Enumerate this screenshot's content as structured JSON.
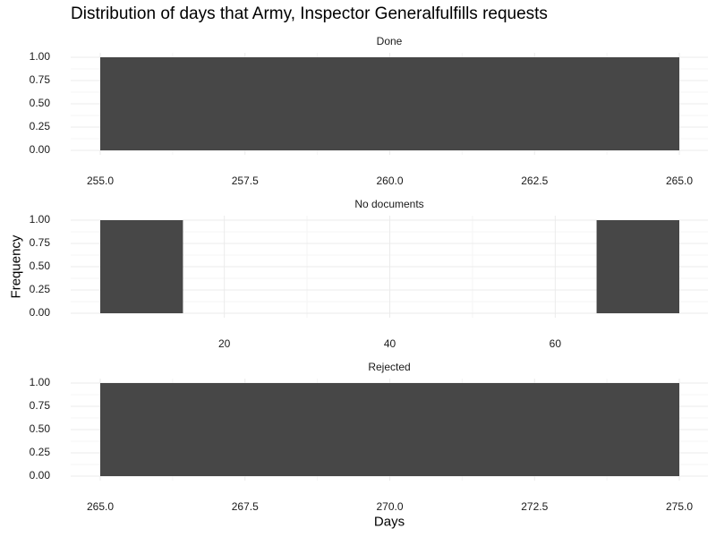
{
  "title": "Distribution of days that Army, Inspector Generalfulfills requests",
  "chart_data": {
    "type": "bar",
    "title": "Distribution of days that Army, Inspector Generalfulfills requests",
    "xlabel": "Days",
    "ylabel": "Frequency",
    "grid": true,
    "facets": [
      {
        "label": "Done",
        "bars": [
          {
            "x_start": 255,
            "x_end": 265,
            "count": 1
          }
        ],
        "xlim": [
          255,
          265
        ],
        "xticks": [
          255.0,
          257.5,
          260.0,
          262.5,
          265.0
        ],
        "xtick_labels": [
          "255.0",
          "257.5",
          "260.0",
          "262.5",
          "265.0"
        ],
        "ylim": [
          0,
          1
        ],
        "yticks": [
          0,
          0.25,
          0.5,
          0.75,
          1
        ],
        "ytick_labels": [
          "0.00",
          "0.25",
          "0.50",
          "0.75",
          "1.00"
        ]
      },
      {
        "label": "No documents",
        "bars": [
          {
            "x_start": 5,
            "x_end": 15,
            "count": 1
          },
          {
            "x_start": 65,
            "x_end": 75,
            "count": 1
          }
        ],
        "xlim": [
          5,
          75
        ],
        "xticks": [
          20,
          40,
          60
        ],
        "xtick_labels": [
          "20",
          "40",
          "60"
        ],
        "ylim": [
          0,
          1
        ],
        "yticks": [
          0,
          0.25,
          0.5,
          0.75,
          1
        ],
        "ytick_labels": [
          "0.00",
          "0.25",
          "0.50",
          "0.75",
          "1.00"
        ]
      },
      {
        "label": "Rejected",
        "bars": [
          {
            "x_start": 265,
            "x_end": 275,
            "count": 1
          }
        ],
        "xlim": [
          265,
          275
        ],
        "xticks": [
          265.0,
          267.5,
          270.0,
          272.5,
          275.0
        ],
        "xtick_labels": [
          "265.0",
          "267.5",
          "270.0",
          "272.5",
          "275.0"
        ],
        "ylim": [
          0,
          1
        ],
        "yticks": [
          0,
          0.25,
          0.5,
          0.75,
          1
        ],
        "ytick_labels": [
          "0.00",
          "0.25",
          "0.50",
          "0.75",
          "1.00"
        ]
      }
    ],
    "colors": {
      "bar": "#474747",
      "grid_major": "#ebebeb",
      "grid_minor": "#f5f5f5"
    }
  }
}
